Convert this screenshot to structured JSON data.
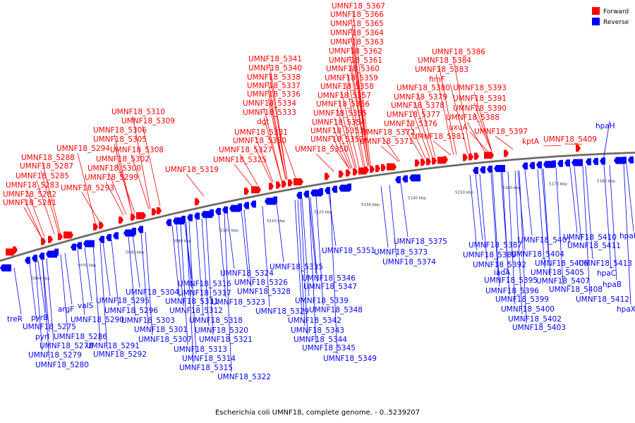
{
  "caption": "Escherichia coli UMNF18, complete genome. - 0..5239207",
  "colors": {
    "forward": "#ff0000",
    "reverse": "#0000ff",
    "backbone": "#777777"
  },
  "legend": [
    {
      "label": "Forward",
      "color": "#ff0000"
    },
    {
      "label": "Reverse",
      "color": "#0000ff"
    }
  ],
  "ticks": [
    "5060 kbp",
    "5070 kbp",
    "5080 kbp",
    "5090 kbp",
    "5100 kbp",
    "5110 kbp",
    "5120 kbp",
    "5130 kbp",
    "5140 kbp",
    "5150 kbp",
    "5160 kbp",
    "5170 kbp",
    "5180 kbp"
  ],
  "forward_genes": [
    "UMNF18_5281",
    "UMNF18_5282",
    "UMNF18_5283",
    "UMNF18_5285",
    "UMNF18_5287",
    "UMNF18_5288",
    "UMNF18_5293",
    "UMNF18_5294",
    "UMNF18_5299",
    "UMNF18_5300",
    "UMNF18_5302",
    "UMNF18_5305",
    "UMNF18_5306",
    "UMNF18_5308",
    "UMNF18_5309",
    "UMNF18_5310",
    "UMNF18_5319",
    "UMNF18_5325",
    "UMNF18_5327",
    "UMNF18_5330",
    "UMNF18_5331",
    "dgt",
    "UMNF18_5333",
    "UMNF18_5334",
    "UMNF18_5336",
    "UMNF18_5337",
    "UMNF18_5338",
    "UMNF18_5340",
    "UMNF18_5341",
    "UMNF18_5350",
    "UMNF18_5352",
    "UMNF18_5353",
    "UMNF18_5354",
    "UMNF18_5355",
    "UMNF18_5356",
    "UMNF18_5357",
    "UMNF18_5358",
    "UMNF18_5359",
    "UMNF18_5360",
    "UMNF18_5361",
    "UMNF18_5362",
    "UMNF18_5363",
    "UMNF18_5364",
    "UMNF18_5365",
    "UMNF18_5366",
    "UMNF18_5367",
    "UMNF18_5371",
    "UMNF18_5372",
    "UMNF18_5376",
    "UMNF18_5377",
    "UMNF18_5378",
    "UMNF18_5379",
    "UMNF18_5380",
    "UMNF18_5381",
    "fimF",
    "uxuA",
    "UMNF18_5383",
    "UMNF18_5384",
    "UMNF18_5386",
    "UMNF18_5388",
    "UMNF18_5390",
    "UMNF18_5391",
    "UMNF18_5393",
    "UMNF18_5397",
    "kptA",
    "UMNF18_5409"
  ],
  "reverse_genes": [
    "treR",
    "pyrB",
    "UMNF18_5275",
    "pyrI",
    "UMNF18_5278",
    "UMNF18_5279",
    "UMNF18_5280",
    "argF",
    "UMNF18_5286",
    "valS",
    "UMNF18_5290",
    "UMNF18_5291",
    "UMNF18_5292",
    "UMNF18_5295",
    "UMNF18_5296",
    "UMNF18_5301",
    "UMNF18_5303",
    "UMNF18_5304",
    "UMNF18_5307",
    "UMNF18_5311",
    "UMNF18_5312",
    "UMNF18_5313",
    "UMNF18_5314",
    "UMNF18_5315",
    "UMNF18_5316",
    "UMNF18_5317",
    "UMNF18_5318",
    "UMNF18_5320",
    "UMNF18_5321",
    "UMNF18_5322",
    "UMNF18_5323",
    "UMNF18_5324",
    "UMNF18_5326",
    "UMNF18_5328",
    "UMNF18_5329",
    "UMNF18_5335",
    "UMNF18_5339",
    "UMNF18_5342",
    "UMNF18_5343",
    "UMNF18_5344",
    "UMNF18_5345",
    "UMNF18_5346",
    "UMNF18_5347",
    "UMNF18_5348",
    "UMNF18_5349",
    "UMNF18_5351",
    "UMNF18_5373",
    "UMNF18_5374",
    "UMNF18_5375",
    "UMNF18_5387",
    "UMNF18_5389",
    "UMNF18_5392",
    "iadA",
    "UMNF18_5395",
    "UMNF18_5396",
    "UMNF18_5399",
    "UMNF18_5400",
    "UMNF18_5401",
    "UMNF18_5402",
    "UMNF18_5403",
    "UMNF18_5404",
    "UMNF18_5405",
    "UMNF18_5406",
    "UMNF18_5407",
    "UMNF18_5408",
    "UMNF18_5410",
    "UMNF18_5411",
    "hpaC",
    "hpaB",
    "UMNF18_5412",
    "UMNF18_5413",
    "hpaX",
    "hpaI",
    "hpaH"
  ]
}
